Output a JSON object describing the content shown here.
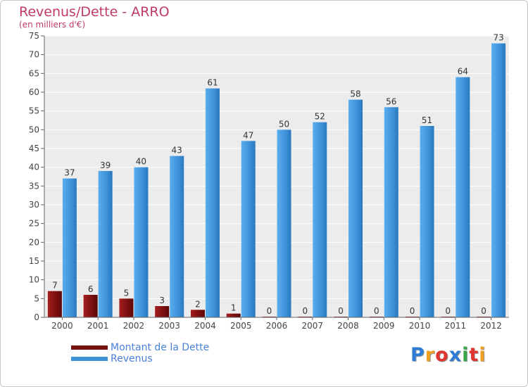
{
  "chart_data": {
    "type": "bar",
    "title": "Revenus/Dette - ARRO",
    "subtitle": "(en milliers d'€)",
    "categories": [
      "2000",
      "2001",
      "2002",
      "2003",
      "2004",
      "2005",
      "2006",
      "2007",
      "2008",
      "2009",
      "2010",
      "2011",
      "2012"
    ],
    "series": [
      {
        "name": "Montant de la Dette",
        "color": "#7a0f0f",
        "values": [
          7,
          6,
          5,
          3,
          2,
          1,
          0,
          0,
          0,
          0,
          0,
          0,
          0
        ]
      },
      {
        "name": "Revenus",
        "color": "#3d92d8",
        "values": [
          37,
          39,
          40,
          43,
          61,
          47,
          50,
          52,
          58,
          56,
          51,
          64,
          73
        ]
      }
    ],
    "ylim": [
      0,
      75
    ],
    "yticks": [
      0,
      5,
      10,
      15,
      20,
      25,
      30,
      35,
      40,
      45,
      50,
      55,
      60,
      65,
      70,
      75
    ],
    "grid": true,
    "legend_position": "bottom-left"
  },
  "logo": {
    "letters": [
      {
        "char": "P",
        "color": "#2e7bd6"
      },
      {
        "char": "r",
        "color": "#f0a020"
      },
      {
        "char": "o",
        "color": "#e0342e"
      },
      {
        "char": "x",
        "color": "#2e7bd6"
      },
      {
        "char": "i",
        "color": "#3aa64a"
      },
      {
        "char": "t",
        "color": "#e0342e"
      },
      {
        "char": "i",
        "color": "#f0a020"
      }
    ]
  }
}
